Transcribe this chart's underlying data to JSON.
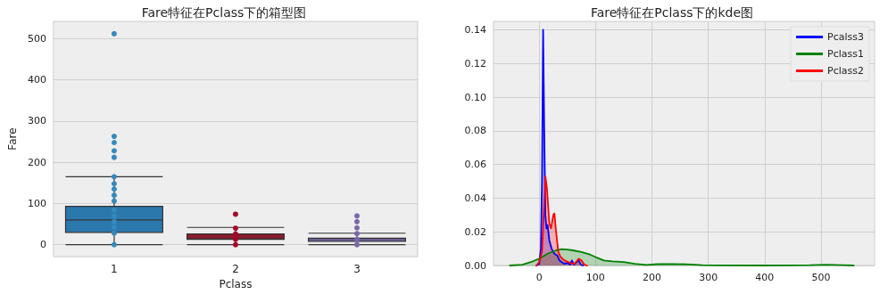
{
  "chart_data": [
    {
      "type": "box",
      "title": "Fare特征在Pclass下的箱型图",
      "xlabel": "Pclass",
      "ylabel": "Fare",
      "categories": [
        "1",
        "2",
        "3"
      ],
      "ylim": [
        -29,
        542
      ],
      "yticks": [
        0,
        100,
        200,
        300,
        400,
        500
      ],
      "grid": "y",
      "legend": false,
      "marker": "circle",
      "series": [
        {
          "type": "box",
          "colors": [
            "#2b78ad",
            "#8c1c2c",
            "#6a5c96"
          ],
          "boxes": [
            {
              "low": 0,
              "q1": 30,
              "median": 60,
              "q3": 93,
              "high": 165
            },
            {
              "low": 0,
              "q1": 13,
              "median": 14,
              "q3": 26,
              "high": 42
            },
            {
              "low": 0,
              "q1": 8,
              "median": 8,
              "q3": 16,
              "high": 28
            }
          ]
        },
        {
          "type": "scatter",
          "color": "#348abd",
          "x": [
            "1",
            "1",
            "1",
            "1",
            "1",
            "1",
            "1",
            "1",
            "1",
            "1",
            "1",
            "1",
            "1",
            "1",
            "1",
            "1"
          ],
          "values": [
            0,
            28,
            42,
            56,
            70,
            84,
            106,
            120,
            135,
            148,
            165,
            212,
            228,
            248,
            263,
            512
          ]
        },
        {
          "type": "scatter",
          "color": "#a60628",
          "x": [
            "2",
            "2",
            "2",
            "2",
            "2"
          ],
          "values": [
            0,
            13,
            26,
            40,
            74
          ]
        },
        {
          "type": "scatter",
          "color": "#7a68a6",
          "x": [
            "3",
            "3",
            "3",
            "3",
            "3",
            "3"
          ],
          "values": [
            0,
            13,
            27,
            41,
            56,
            70
          ]
        }
      ]
    },
    {
      "type": "area",
      "title": "Fare特征在Pclass下的kde图",
      "xlim": [
        -81,
        595
      ],
      "xticks": [
        0,
        100,
        200,
        300,
        400,
        500
      ],
      "ylim": [
        0,
        0.145
      ],
      "yticks": [
        {
          "value": 0,
          "label": "0.00"
        },
        {
          "value": 0.02,
          "label": "0.02"
        },
        {
          "value": 0.04,
          "label": "0.04"
        },
        {
          "value": 0.06,
          "label": "0.06"
        },
        {
          "value": 0.08,
          "label": "0.08"
        },
        {
          "value": 0.1,
          "label": "0.10"
        },
        {
          "value": 0.12,
          "label": "0.12"
        },
        {
          "value": 0.14,
          "label": "0.14"
        }
      ],
      "grid": true,
      "legend": "top right",
      "marker": "none",
      "series": [
        {
          "name": "Pcalss3",
          "color": "#0000ff",
          "x": [
            -5,
            0,
            3,
            5,
            7,
            9,
            11,
            13,
            15,
            18,
            22,
            27,
            32,
            36,
            40,
            45,
            50,
            55,
            58,
            62,
            66,
            70,
            74,
            78
          ],
          "values": [
            0,
            0.001,
            0.01,
            0.05,
            0.14,
            0.08,
            0.03,
            0.022,
            0.024,
            0.015,
            0.01,
            0.007,
            0.006,
            0.003,
            0.002,
            0.001,
            0.0015,
            0.0005,
            0.003,
            0.0005,
            0.002,
            0.003,
            0.0005,
            0
          ]
        },
        {
          "name": "Pclass1",
          "color": "#008000",
          "x": [
            -52,
            -30,
            -15,
            0,
            15,
            30,
            40,
            50,
            60,
            75,
            90,
            100,
            115,
            130,
            150,
            170,
            190,
            210,
            240,
            270,
            290,
            320,
            400,
            480,
            510,
            540,
            558
          ],
          "values": [
            0,
            0.0005,
            0.002,
            0.004,
            0.007,
            0.009,
            0.0097,
            0.0095,
            0.009,
            0.008,
            0.0065,
            0.005,
            0.003,
            0.0025,
            0.002,
            0.001,
            0.0003,
            0.0008,
            0.0009,
            0.0006,
            0.0002,
            0.0001,
            0,
            0.0002,
            0.0005,
            0.0002,
            0
          ]
        },
        {
          "name": "Pclass2",
          "color": "#ff0000",
          "x": [
            -5,
            0,
            5,
            8,
            11,
            14,
            18,
            21,
            25,
            27,
            30,
            34,
            38,
            45,
            55,
            63,
            70,
            75,
            80,
            85
          ],
          "values": [
            0,
            0.002,
            0.008,
            0.03,
            0.053,
            0.045,
            0.025,
            0.022,
            0.03,
            0.031,
            0.02,
            0.008,
            0.005,
            0.003,
            0.0015,
            0.001,
            0.004,
            0.003,
            0.0005,
            0
          ]
        }
      ]
    }
  ]
}
